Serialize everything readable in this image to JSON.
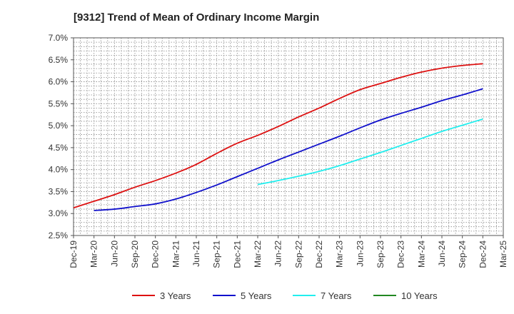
{
  "chart_data": {
    "type": "line",
    "title": "[9312]  Trend of Mean of Ordinary Income Margin",
    "xlabel": "",
    "ylabel": "",
    "x_ticks": [
      "Dec-19",
      "Mar-20",
      "Jun-20",
      "Sep-20",
      "Dec-20",
      "Mar-21",
      "Jun-21",
      "Sep-21",
      "Dec-21",
      "Mar-22",
      "Jun-22",
      "Sep-22",
      "Dec-22",
      "Mar-23",
      "Jun-23",
      "Sep-23",
      "Dec-23",
      "Mar-24",
      "Jun-24",
      "Sep-24",
      "Dec-24",
      "Mar-25"
    ],
    "y_ticks": [
      "7.0%",
      "6.5%",
      "6.0%",
      "5.5%",
      "5.0%",
      "4.5%",
      "4.0%",
      "3.5%",
      "3.0%",
      "2.5%"
    ],
    "ylim": [
      2.5,
      7.0
    ],
    "y_unit": "%",
    "grid": true,
    "legend_position": "bottom",
    "series": [
      {
        "name": "3 Years",
        "color": "#dd1111",
        "x": [
          "Dec-19",
          "Mar-20",
          "Jun-20",
          "Sep-20",
          "Dec-20",
          "Mar-21",
          "Jun-21",
          "Sep-21",
          "Dec-21",
          "Mar-22",
          "Jun-22",
          "Sep-22",
          "Dec-22",
          "Mar-23",
          "Jun-23",
          "Sep-23",
          "Dec-23",
          "Mar-24",
          "Jun-24",
          "Sep-24",
          "Dec-24"
        ],
        "values": [
          3.13,
          3.28,
          3.43,
          3.6,
          3.75,
          3.92,
          4.12,
          4.37,
          4.6,
          4.78,
          4.98,
          5.2,
          5.4,
          5.62,
          5.82,
          5.96,
          6.1,
          6.22,
          6.31,
          6.37,
          6.41
        ]
      },
      {
        "name": "5 Years",
        "color": "#1111cc",
        "x": [
          "Mar-20",
          "Jun-20",
          "Sep-20",
          "Dec-20",
          "Mar-21",
          "Jun-21",
          "Sep-21",
          "Dec-21",
          "Mar-22",
          "Jun-22",
          "Sep-22",
          "Dec-22",
          "Mar-23",
          "Jun-23",
          "Sep-23",
          "Dec-23",
          "Mar-24",
          "Jun-24",
          "Sep-24",
          "Dec-24"
        ],
        "values": [
          3.07,
          3.1,
          3.16,
          3.22,
          3.33,
          3.48,
          3.65,
          3.84,
          4.03,
          4.22,
          4.4,
          4.58,
          4.76,
          4.95,
          5.13,
          5.28,
          5.42,
          5.57,
          5.7,
          5.84
        ]
      },
      {
        "name": "7 Years",
        "color": "#22eeee",
        "x": [
          "Mar-22",
          "Jun-22",
          "Sep-22",
          "Dec-22",
          "Mar-23",
          "Jun-23",
          "Sep-23",
          "Dec-23",
          "Mar-24",
          "Jun-24",
          "Sep-24",
          "Dec-24"
        ],
        "values": [
          3.66,
          3.75,
          3.85,
          3.96,
          4.09,
          4.24,
          4.39,
          4.55,
          4.71,
          4.87,
          5.01,
          5.15
        ]
      },
      {
        "name": "10 Years",
        "color": "#228822",
        "x": [],
        "values": []
      }
    ]
  }
}
